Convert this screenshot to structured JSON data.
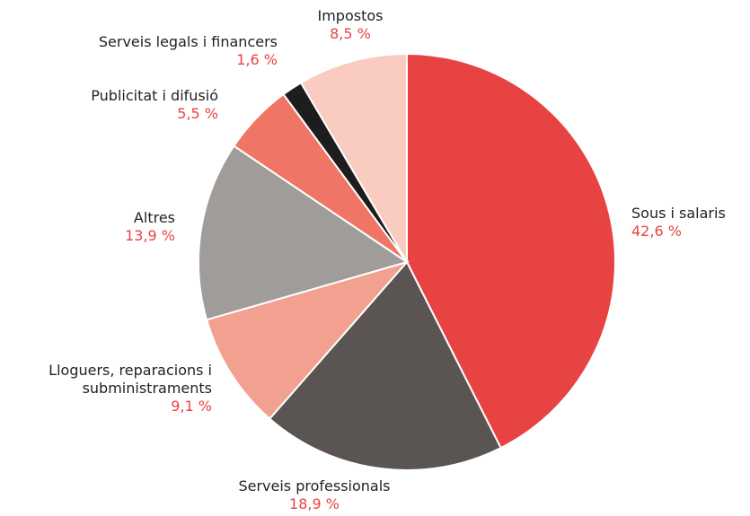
{
  "chart_data": {
    "type": "pie",
    "categories": [
      "Sous i salaris",
      "Serveis professionals",
      "Lloguers, reparacions i subministraments",
      "Altres",
      "Publicitat i difusió",
      "Serveis legals i financers",
      "Impostos"
    ],
    "values": [
      42.6,
      18.9,
      9.1,
      13.9,
      5.5,
      1.6,
      8.5
    ],
    "value_labels": [
      "42,6 %",
      "18,9 %",
      "9,1 %",
      "13,9 %",
      "5,5 %",
      "1,6 %",
      "8,5 %"
    ],
    "colors": [
      "#e84343",
      "#5a5452",
      "#f2a090",
      "#a09c9a",
      "#ef7666",
      "#1d1d1d",
      "#f9cbc1"
    ]
  }
}
